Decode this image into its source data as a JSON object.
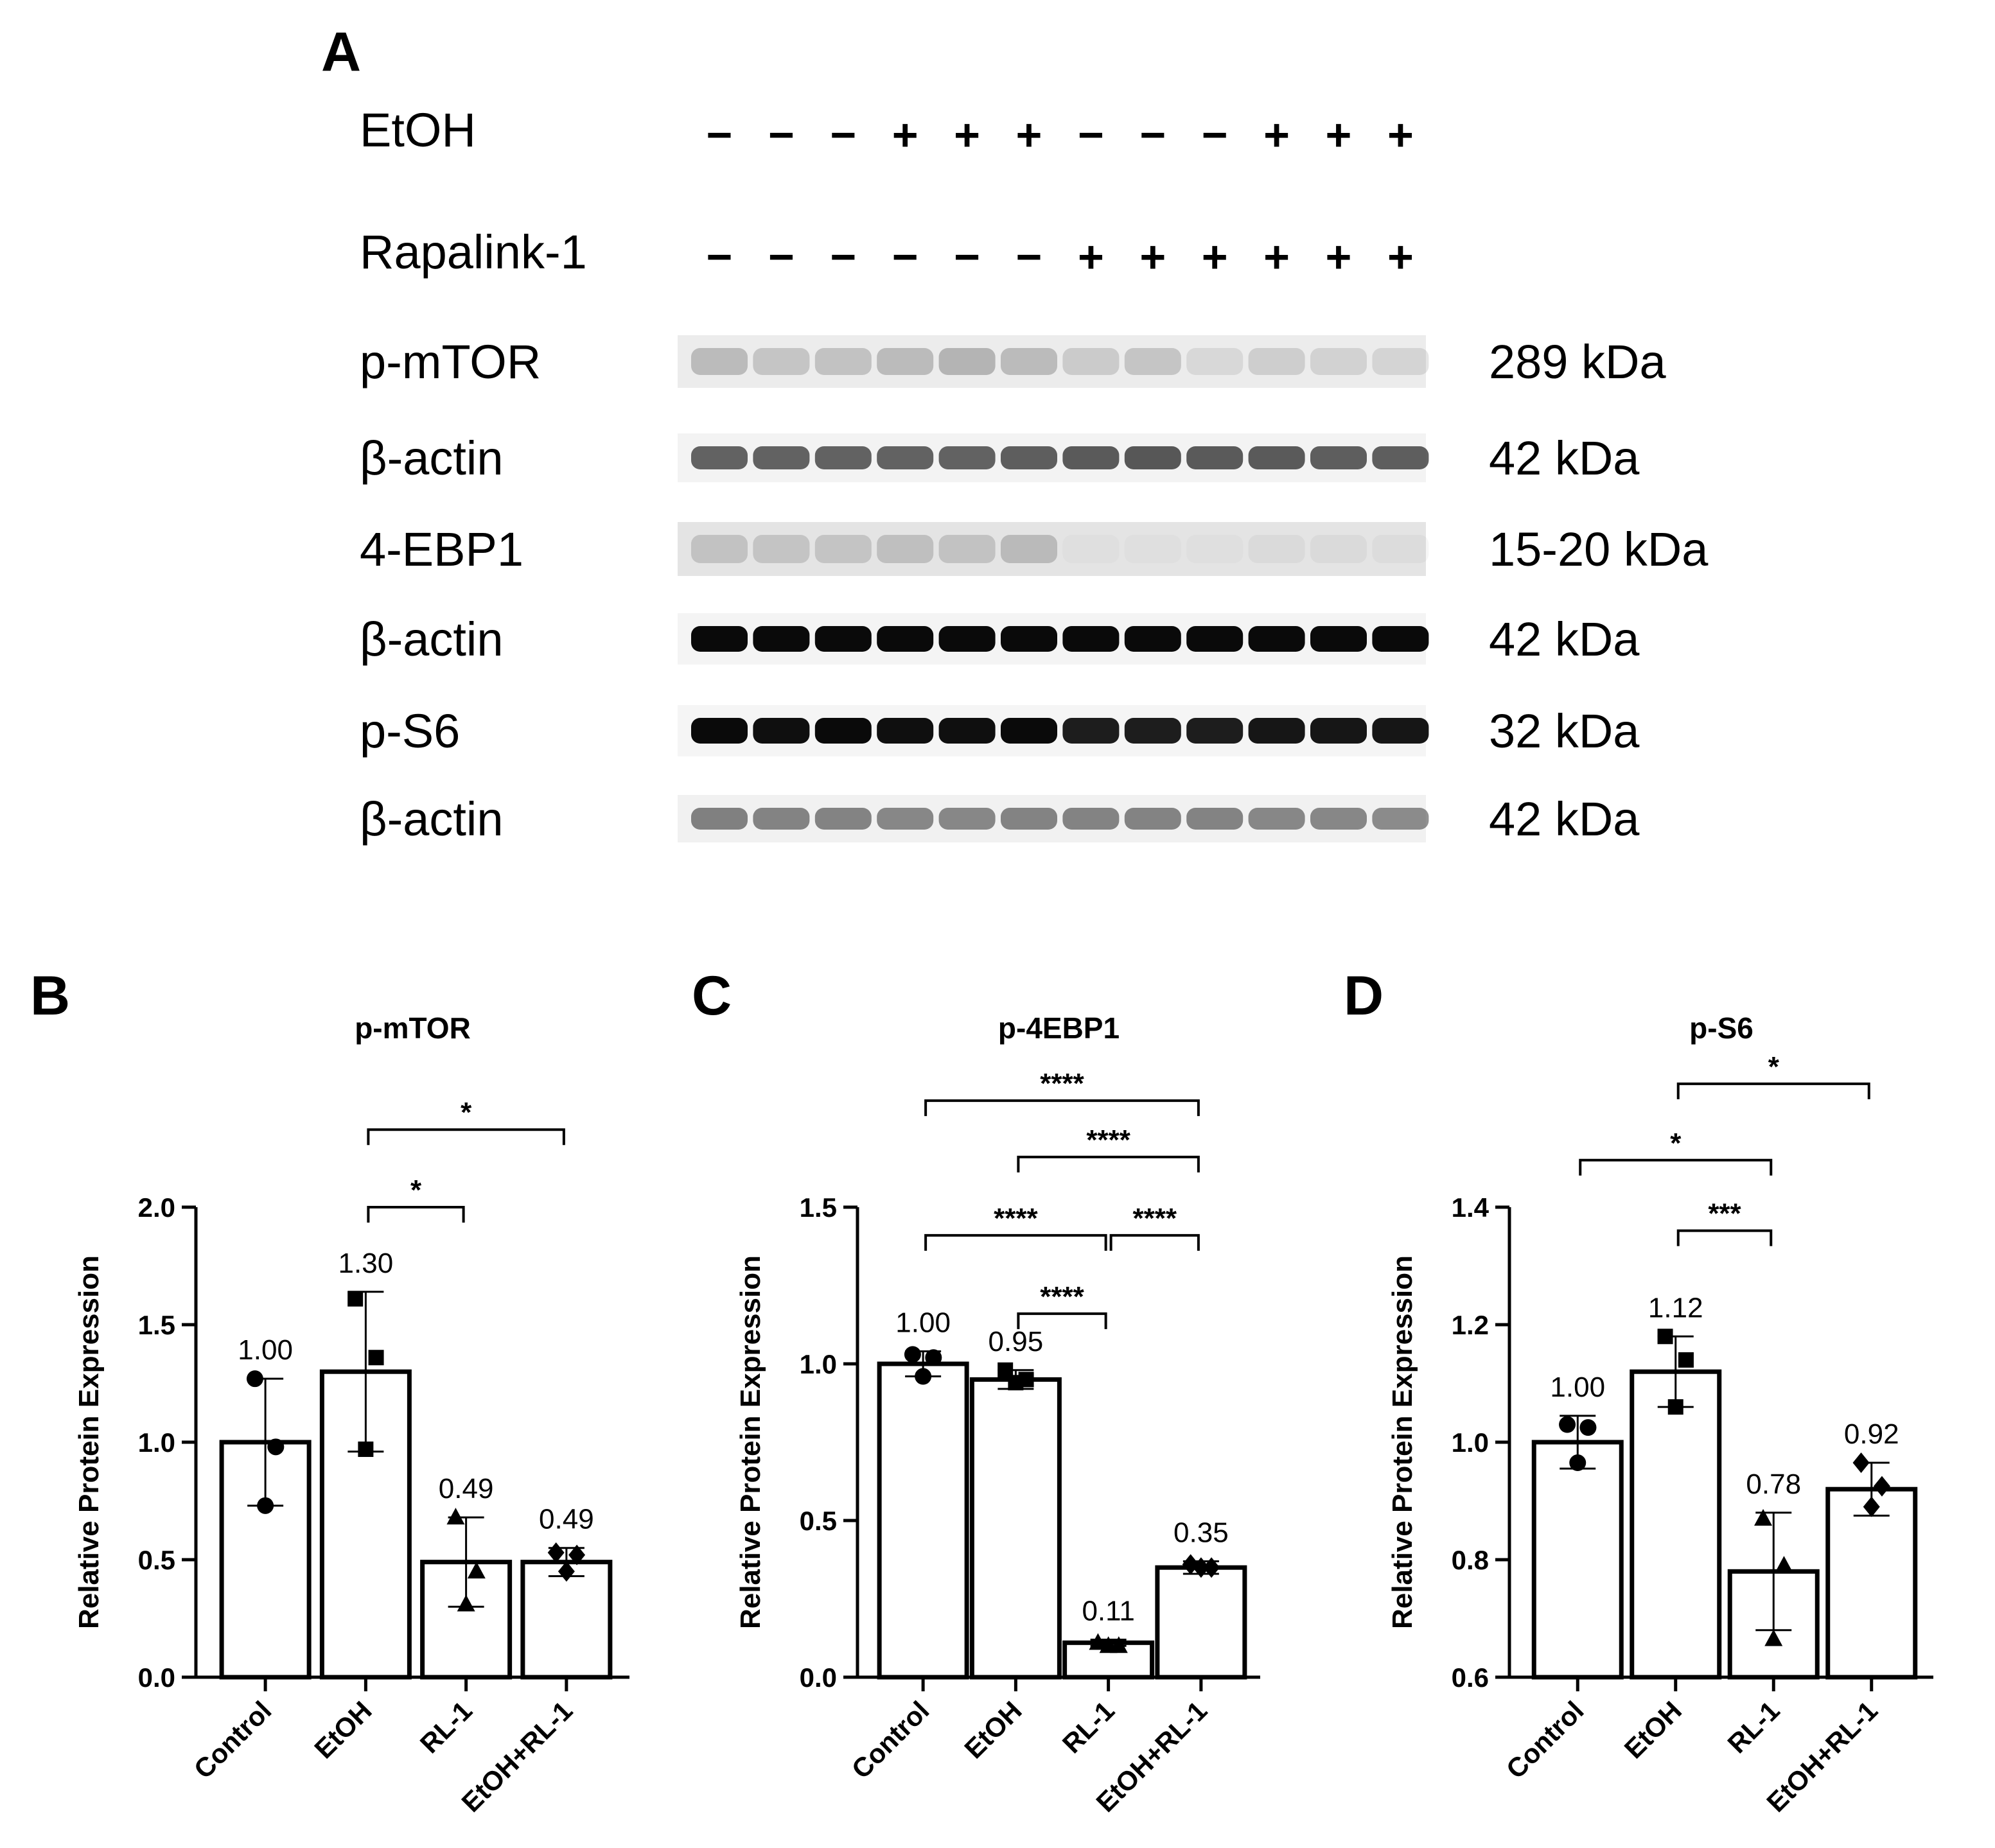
{
  "figure": {
    "panel_a": {
      "letter": "A",
      "conditions": [
        {
          "label": "EtOH",
          "signs": [
            "−",
            "−",
            "−",
            "+",
            "+",
            "+",
            "−",
            "−",
            "−",
            "+",
            "+",
            "+"
          ]
        },
        {
          "label": "Rapalink-1",
          "signs": [
            "−",
            "−",
            "−",
            "−",
            "−",
            "−",
            "+",
            "+",
            "+",
            "+",
            "+",
            "+"
          ]
        }
      ],
      "blots": [
        {
          "label": "p-mTOR",
          "size": "289 kDa",
          "intensity": [
            0.3,
            0.24,
            0.26,
            0.3,
            0.34,
            0.3,
            0.2,
            0.24,
            0.12,
            0.18,
            0.16,
            0.14
          ],
          "band_color": "#4a4a4a",
          "background": "#ececec"
        },
        {
          "label": "β-actin",
          "size": "42 kDa",
          "intensity": [
            0.72,
            0.72,
            0.72,
            0.72,
            0.72,
            0.74,
            0.76,
            0.78,
            0.76,
            0.76,
            0.74,
            0.74
          ],
          "band_color": "#2a2a2a",
          "background": "#f3f3f3"
        },
        {
          "label": "4-EBP1",
          "size": "15-20 kDa",
          "intensity": [
            0.28,
            0.26,
            0.26,
            0.3,
            0.28,
            0.34,
            0.04,
            0.04,
            0.04,
            0.08,
            0.07,
            0.06
          ],
          "band_color": "#6a6a6a",
          "background": "#e4e4e4"
        },
        {
          "label": "β-actin",
          "size": "42 kDa",
          "intensity": [
            1,
            1,
            1,
            1,
            1,
            1,
            1,
            1,
            1,
            1,
            1,
            1
          ],
          "band_color": "#0a0a0a",
          "background": "#f4f4f4"
        },
        {
          "label": "p-S6",
          "size": "32 kDa",
          "intensity": [
            1,
            0.98,
            1,
            0.98,
            0.98,
            1,
            0.92,
            0.92,
            0.92,
            0.95,
            0.95,
            0.95
          ],
          "band_color": "#0a0a0a",
          "background": "#f5f5f5"
        },
        {
          "label": "β-actin",
          "size": "42 kDa",
          "intensity": [
            0.62,
            0.6,
            0.6,
            0.58,
            0.58,
            0.6,
            0.6,
            0.6,
            0.6,
            0.58,
            0.58,
            0.56
          ],
          "band_color": "#3a3a3a",
          "background": "#f1f1f1"
        }
      ]
    }
  },
  "chart_data": [
    {
      "type": "bar",
      "letter": "B",
      "title": "p-mTOR",
      "xlabel": "",
      "ylabel": "Relative Protein Expression",
      "categories": [
        "Control",
        "EtOH",
        "RL-1",
        "EtOH+RL-1"
      ],
      "values": [
        1.0,
        1.3,
        0.49,
        0.49
      ],
      "value_labels": [
        "1.00",
        "1.30",
        "0.49",
        "0.49"
      ],
      "sd": [
        0.27,
        0.34,
        0.19,
        0.06
      ],
      "points": [
        [
          1.27,
          0.98,
          0.73
        ],
        [
          1.61,
          1.36,
          0.97
        ],
        [
          0.68,
          0.45,
          0.31
        ],
        [
          0.53,
          0.52,
          0.45
        ]
      ],
      "markers": [
        "circle",
        "square",
        "triangle",
        "diamond"
      ],
      "ylim": [
        0,
        2.0
      ],
      "yticks": [
        "0.0",
        "0.5",
        "1.0",
        "1.5",
        "2.0"
      ],
      "ytick_values": [
        0,
        0.5,
        1.0,
        1.5,
        2.0
      ],
      "significance": [
        {
          "from": "EtOH",
          "to": "RL-1",
          "label": "*",
          "level": 2.0
        },
        {
          "from": "EtOH",
          "to": "EtOH+RL-1",
          "label": "*",
          "level": 2.33
        }
      ]
    },
    {
      "type": "bar",
      "letter": "C",
      "title": "p-4EBP1",
      "xlabel": "",
      "ylabel": "Relative Protein Expression",
      "categories": [
        "Control",
        "EtOH",
        "RL-1",
        "EtOH+RL-1"
      ],
      "values": [
        1.0,
        0.95,
        0.11,
        0.35
      ],
      "value_labels": [
        "1.00",
        "0.95",
        "0.11",
        "0.35"
      ],
      "sd": [
        0.04,
        0.03,
        0.01,
        0.02
      ],
      "points": [
        [
          1.03,
          1.02,
          0.96
        ],
        [
          0.98,
          0.95,
          0.94
        ],
        [
          0.11,
          0.1,
          0.1
        ],
        [
          0.36,
          0.35,
          0.35
        ]
      ],
      "markers": [
        "circle",
        "square",
        "triangle",
        "diamond"
      ],
      "ylim": [
        0,
        1.5
      ],
      "yticks": [
        "0.0",
        "0.5",
        "1.0",
        "1.5"
      ],
      "ytick_values": [
        0,
        0.5,
        1.0,
        1.5
      ],
      "significance": [
        {
          "from": "EtOH",
          "to": "RL-1",
          "label": "****",
          "level": 1.16
        },
        {
          "from": "Control",
          "to": "RL-1",
          "label": "****",
          "level": 1.41
        },
        {
          "from": "RL-1",
          "to": "EtOH+RL-1",
          "label": "****",
          "level": 1.41
        },
        {
          "from": "EtOH",
          "to": "EtOH+RL-1",
          "label": "****",
          "level": 1.66
        },
        {
          "from": "Control",
          "to": "EtOH+RL-1",
          "label": "****",
          "level": 1.84
        }
      ]
    },
    {
      "type": "bar",
      "letter": "D",
      "title": "p-S6",
      "xlabel": "",
      "ylabel": "Relative Protein Expression",
      "categories": [
        "Control",
        "EtOH",
        "RL-1",
        "EtOH+RL-1"
      ],
      "values": [
        1.0,
        1.12,
        0.78,
        0.92
      ],
      "value_labels": [
        "1.00",
        "1.12",
        "0.78",
        "0.92"
      ],
      "sd": [
        0.045,
        0.06,
        0.1,
        0.045
      ],
      "points": [
        [
          1.03,
          1.025,
          0.965
        ],
        [
          1.18,
          1.14,
          1.06
        ],
        [
          0.87,
          0.79,
          0.665
        ],
        [
          0.965,
          0.925,
          0.89
        ]
      ],
      "markers": [
        "circle",
        "square",
        "triangle",
        "diamond"
      ],
      "ylim": [
        0.6,
        1.4
      ],
      "yticks": [
        "0.6",
        "0.8",
        "1.0",
        "1.2",
        "1.4"
      ],
      "ytick_values": [
        0.6,
        0.8,
        1.0,
        1.2,
        1.4
      ],
      "significance": [
        {
          "from": "EtOH",
          "to": "RL-1",
          "label": "***",
          "level": 1.36
        },
        {
          "from": "Control",
          "to": "RL-1",
          "label": "*",
          "level": 1.48
        },
        {
          "from": "EtOH",
          "to": "EtOH+RL-1",
          "label": "*",
          "level": 1.61
        }
      ]
    }
  ]
}
